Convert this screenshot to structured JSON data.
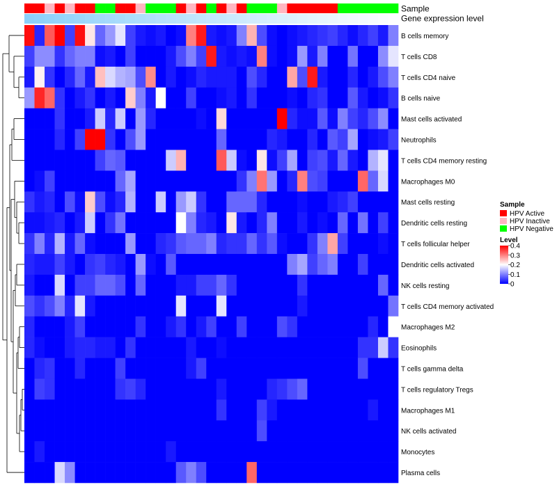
{
  "chart_data": {
    "type": "heatmap",
    "annotation_tracks": [
      "Sample",
      "Gene expression level"
    ],
    "rows": [
      "B cells memory",
      "T cells CD8",
      "T cells CD4 naive",
      "B cells naive",
      "Mast cells activated",
      "Neutrophils",
      "T cells CD4 memory resting",
      "Macrophages M0",
      "Mast cells resting",
      "Dendritic cells resting",
      "T cells follicular helper",
      "Dendritic cells activated",
      "NK cells resting",
      "T cells CD4 memory activated",
      "Macrophages M2",
      "Eosinophils",
      "T cells gamma delta",
      "T cells regulatory  Tregs",
      "Macrophages M1",
      "NK cells activated",
      "Monocytes",
      "Plasma cells"
    ],
    "sample_groups": [
      "A",
      "A",
      "I",
      "A",
      "I",
      "A",
      "A",
      "N",
      "N",
      "A",
      "A",
      "I",
      "N",
      "N",
      "N",
      "A",
      "I",
      "A",
      "N",
      "A",
      "I",
      "A",
      "N",
      "N",
      "N",
      "I",
      "A",
      "A",
      "A",
      "A",
      "A",
      "N",
      "N",
      "N",
      "N",
      "N",
      "N"
    ],
    "values": [
      [
        0.39,
        0.03,
        0.33,
        0.4,
        0.05,
        0.39,
        0.22,
        0.08,
        0.12,
        0.18,
        0.05,
        0.02,
        0.01,
        0.02,
        0.0,
        0.01,
        0.3,
        0.38,
        0.02,
        0.01,
        0.02,
        0.1,
        0.26,
        0.06,
        0.01,
        0.0,
        0.01,
        0.02,
        0.03,
        0.04,
        0.05,
        0.03,
        0.01,
        0.03,
        0.05,
        0.02,
        0.1
      ],
      [
        0.05,
        0.11,
        0.11,
        0.04,
        0.08,
        0.1,
        0.1,
        0.01,
        0.02,
        0.0,
        0.05,
        0.0,
        0.0,
        0.0,
        0.02,
        0.06,
        0.1,
        0.05,
        0.38,
        0.02,
        0.01,
        0.02,
        0.01,
        0.3,
        0.01,
        0.0,
        0.01,
        0.12,
        0.02,
        0.1,
        0.0,
        0.0,
        0.09,
        0.0,
        0.0,
        0.11,
        0.18
      ],
      [
        0.02,
        0.21,
        0.04,
        0.0,
        0.03,
        0.08,
        0.02,
        0.25,
        0.17,
        0.14,
        0.13,
        0.06,
        0.29,
        0.0,
        0.02,
        0.0,
        0.01,
        0.03,
        0.02,
        0.02,
        0.02,
        0.0,
        0.06,
        0.03,
        0.0,
        0.0,
        0.27,
        0.06,
        0.38,
        0.02,
        0.0,
        0.0,
        0.03,
        0.0,
        0.02,
        0.06,
        0.1
      ],
      [
        0.12,
        0.37,
        0.32,
        0.04,
        0.0,
        0.02,
        0.04,
        0.0,
        0.02,
        0.0,
        0.24,
        0.1,
        0.02,
        0.2,
        0.0,
        0.0,
        0.05,
        0.0,
        0.0,
        0.01,
        0.02,
        0.0,
        0.04,
        0.0,
        0.0,
        0.0,
        0.01,
        0.0,
        0.03,
        0.04,
        0.0,
        0.0,
        0.07,
        0.02,
        0.0,
        0.01,
        0.04
      ],
      [
        0.0,
        0.0,
        0.0,
        0.04,
        0.0,
        0.0,
        0.02,
        0.16,
        0.03,
        0.16,
        0.0,
        0.12,
        0.03,
        0.0,
        0.0,
        0.0,
        0.0,
        0.01,
        0.0,
        0.23,
        0.0,
        0.0,
        0.0,
        0.0,
        0.0,
        0.41,
        0.03,
        0.01,
        0.01,
        0.07,
        0.01,
        0.1,
        0.05,
        0.03,
        0.06,
        0.11,
        0.0
      ],
      [
        0.0,
        0.0,
        0.0,
        0.03,
        0.0,
        0.05,
        0.42,
        0.42,
        0.04,
        0.0,
        0.06,
        0.12,
        0.0,
        0.0,
        0.0,
        0.0,
        0.0,
        0.0,
        0.0,
        0.08,
        0.0,
        0.0,
        0.0,
        0.0,
        0.03,
        0.02,
        0.0,
        0.0,
        0.03,
        0.0,
        0.07,
        0.05,
        0.13,
        0.0,
        0.01,
        0.02,
        0.05
      ],
      [
        0.0,
        0.0,
        0.0,
        0.0,
        0.0,
        0.0,
        0.0,
        0.05,
        0.08,
        0.07,
        0.0,
        0.0,
        0.0,
        0.0,
        0.16,
        0.26,
        0.0,
        0.0,
        0.0,
        0.33,
        0.16,
        0.01,
        0.0,
        0.22,
        0.01,
        0.05,
        0.13,
        0.0,
        0.05,
        0.06,
        0.02,
        0.08,
        0.02,
        0.0,
        0.14,
        0.18,
        0.0
      ],
      [
        0.0,
        0.01,
        0.05,
        0.0,
        0.0,
        0.0,
        0.0,
        0.0,
        0.0,
        0.08,
        0.13,
        0.0,
        0.0,
        0.0,
        0.0,
        0.0,
        0.0,
        0.0,
        0.0,
        0.0,
        0.0,
        0.04,
        0.1,
        0.31,
        0.12,
        0.0,
        0.03,
        0.3,
        0.06,
        0.05,
        0.0,
        0.0,
        0.0,
        0.32,
        0.08,
        0.17,
        0.0
      ],
      [
        0.04,
        0.02,
        0.03,
        0.0,
        0.06,
        0.01,
        0.24,
        0.06,
        0.01,
        0.03,
        0.14,
        0.0,
        0.0,
        0.16,
        0.0,
        0.12,
        0.16,
        0.04,
        0.0,
        0.0,
        0.08,
        0.08,
        0.08,
        0.03,
        0.0,
        0.0,
        0.0,
        0.01,
        0.0,
        0.0,
        0.02,
        0.03,
        0.05,
        0.0,
        0.0,
        0.0,
        0.0
      ],
      [
        0.01,
        0.01,
        0.02,
        0.03,
        0.0,
        0.02,
        0.16,
        0.0,
        0.04,
        0.09,
        0.0,
        0.0,
        0.0,
        0.0,
        0.0,
        0.2,
        0.1,
        0.03,
        0.02,
        0.0,
        0.22,
        0.02,
        0.0,
        0.03,
        0.1,
        0.0,
        0.0,
        0.02,
        0.0,
        0.01,
        0.0,
        0.08,
        0.0,
        0.09,
        0.0,
        0.05,
        0.0
      ],
      [
        0.04,
        0.1,
        0.03,
        0.14,
        0.02,
        0.08,
        0.01,
        0.0,
        0.0,
        0.0,
        0.12,
        0.0,
        0.0,
        0.03,
        0.04,
        0.07,
        0.08,
        0.08,
        0.1,
        0.03,
        0.04,
        0.04,
        0.08,
        0.04,
        0.07,
        0.01,
        0.0,
        0.0,
        0.04,
        0.1,
        0.27,
        0.05,
        0.0,
        0.0,
        0.0,
        0.01,
        0.0
      ],
      [
        0.03,
        0.02,
        0.02,
        0.05,
        0.02,
        0.0,
        0.04,
        0.05,
        0.03,
        0.02,
        0.0,
        0.12,
        0.01,
        0.0,
        0.07,
        0.0,
        0.0,
        0.0,
        0.0,
        0.0,
        0.0,
        0.0,
        0.0,
        0.0,
        0.0,
        0.0,
        0.1,
        0.13,
        0.05,
        0.08,
        0.1,
        0.0,
        0.0,
        0.05,
        0.0,
        0.0,
        0.0
      ],
      [
        0.02,
        0.0,
        0.0,
        0.17,
        0.0,
        0.05,
        0.05,
        0.08,
        0.08,
        0.06,
        0.0,
        0.08,
        0.0,
        0.0,
        0.0,
        0.02,
        0.02,
        0.05,
        0.05,
        0.08,
        0.04,
        0.0,
        0.0,
        0.0,
        0.0,
        0.0,
        0.0,
        0.04,
        0.0,
        0.0,
        0.0,
        0.0,
        0.0,
        0.0,
        0.0,
        0.08,
        0.0
      ],
      [
        0.06,
        0.04,
        0.06,
        0.1,
        0.03,
        0.18,
        0.02,
        0.0,
        0.0,
        0.0,
        0.0,
        0.0,
        0.0,
        0.0,
        0.0,
        0.18,
        0.0,
        0.0,
        0.0,
        0.18,
        0.0,
        0.0,
        0.0,
        0.0,
        0.0,
        0.0,
        0.0,
        0.02,
        0.0,
        0.0,
        0.0,
        0.0,
        0.0,
        0.0,
        0.0,
        0.0,
        0.09
      ],
      [
        0.03,
        0.0,
        0.0,
        0.0,
        0.02,
        0.05,
        0.0,
        0.0,
        0.0,
        0.0,
        0.0,
        0.04,
        0.0,
        0.0,
        0.02,
        0.04,
        0.0,
        0.02,
        0.05,
        0.0,
        0.0,
        0.05,
        0.0,
        0.0,
        0.0,
        0.06,
        0.04,
        0.0,
        0.0,
        0.0,
        0.0,
        0.0,
        0.0,
        0.0,
        0.03,
        0.0,
        0.2
      ],
      [
        0.03,
        0.01,
        0.0,
        0.0,
        0.02,
        0.03,
        0.03,
        0.02,
        0.02,
        0.0,
        0.04,
        0.0,
        0.0,
        0.0,
        0.0,
        0.0,
        0.02,
        0.0,
        0.0,
        0.01,
        0.0,
        0.0,
        0.0,
        0.0,
        0.0,
        0.0,
        0.0,
        0.0,
        0.0,
        0.0,
        0.0,
        0.0,
        0.0,
        0.04,
        0.04,
        0.16,
        0.04
      ],
      [
        0.0,
        0.03,
        0.04,
        0.0,
        0.0,
        0.03,
        0.0,
        0.0,
        0.0,
        0.05,
        0.0,
        0.0,
        0.0,
        0.0,
        0.0,
        0.0,
        0.02,
        0.05,
        0.0,
        0.0,
        0.0,
        0.0,
        0.0,
        0.0,
        0.0,
        0.0,
        0.0,
        0.0,
        0.0,
        0.0,
        0.0,
        0.0,
        0.0,
        0.06,
        0.0,
        0.0,
        0.0
      ],
      [
        0.0,
        0.05,
        0.04,
        0.0,
        0.0,
        0.0,
        0.0,
        0.0,
        0.0,
        0.04,
        0.05,
        0.03,
        0.0,
        0.0,
        0.0,
        0.0,
        0.0,
        0.0,
        0.0,
        0.02,
        0.0,
        0.0,
        0.0,
        0.0,
        0.03,
        0.04,
        0.06,
        0.08,
        0.0,
        0.0,
        0.0,
        0.0,
        0.0,
        0.0,
        0.0,
        0.0,
        0.0
      ],
      [
        0.0,
        0.0,
        0.0,
        0.0,
        0.0,
        0.0,
        0.0,
        0.0,
        0.0,
        0.0,
        0.0,
        0.0,
        0.0,
        0.0,
        0.0,
        0.0,
        0.0,
        0.0,
        0.0,
        0.04,
        0.0,
        0.0,
        0.0,
        0.05,
        0.02,
        0.0,
        0.0,
        0.0,
        0.0,
        0.0,
        0.0,
        0.0,
        0.0,
        0.0,
        0.02,
        0.0,
        0.0
      ],
      [
        0.0,
        0.0,
        0.0,
        0.0,
        0.0,
        0.0,
        0.0,
        0.0,
        0.0,
        0.0,
        0.0,
        0.0,
        0.0,
        0.0,
        0.0,
        0.0,
        0.0,
        0.0,
        0.0,
        0.0,
        0.0,
        0.0,
        0.0,
        0.06,
        0.0,
        0.0,
        0.0,
        0.0,
        0.0,
        0.0,
        0.0,
        0.0,
        0.0,
        0.0,
        0.0,
        0.0,
        0.0
      ],
      [
        0.0,
        0.02,
        0.0,
        0.0,
        0.0,
        0.0,
        0.0,
        0.0,
        0.0,
        0.0,
        0.0,
        0.0,
        0.0,
        0.0,
        0.02,
        0.0,
        0.0,
        0.0,
        0.0,
        0.0,
        0.0,
        0.0,
        0.0,
        0.0,
        0.0,
        0.0,
        0.0,
        0.0,
        0.0,
        0.0,
        0.0,
        0.0,
        0.0,
        0.0,
        0.0,
        0.0,
        0.0
      ],
      [
        0.0,
        0.0,
        0.0,
        0.17,
        0.11,
        0.0,
        0.0,
        0.0,
        0.0,
        0.0,
        0.0,
        0.0,
        0.0,
        0.0,
        0.0,
        0.07,
        0.1,
        0.06,
        0.0,
        0.0,
        0.0,
        0.0,
        0.32,
        0.0,
        0.0,
        0.0,
        0.0,
        0.0,
        0.0,
        0.0,
        0.0,
        0.0,
        0.0,
        0.0,
        0.0,
        0.0,
        0.0
      ]
    ],
    "expression_level": {
      "start": 0.96,
      "end": 0.02
    },
    "legend": {
      "placement": "right",
      "sample_title": "Sample",
      "sample_entries": [
        {
          "key": "A",
          "label": "HPV Active",
          "color": "#ff0000"
        },
        {
          "key": "I",
          "label": "HPV Inactive",
          "color": "#ffb6c1"
        },
        {
          "key": "N",
          "label": "HPV Negative",
          "color": "#00ff00"
        }
      ],
      "level_title": "Level",
      "level_ticks": [
        "0.4",
        "0.3",
        "0.2",
        "0.1",
        "0"
      ],
      "level_values": [
        0.4,
        0.3,
        0.2,
        0.1,
        0
      ]
    },
    "color_scale": {
      "low": "#0000ff",
      "mid": "#ffffff",
      "high": "#ff0000",
      "min": 0,
      "mid_value": 0.2,
      "max": 0.4
    },
    "dendrogram": "rows"
  }
}
